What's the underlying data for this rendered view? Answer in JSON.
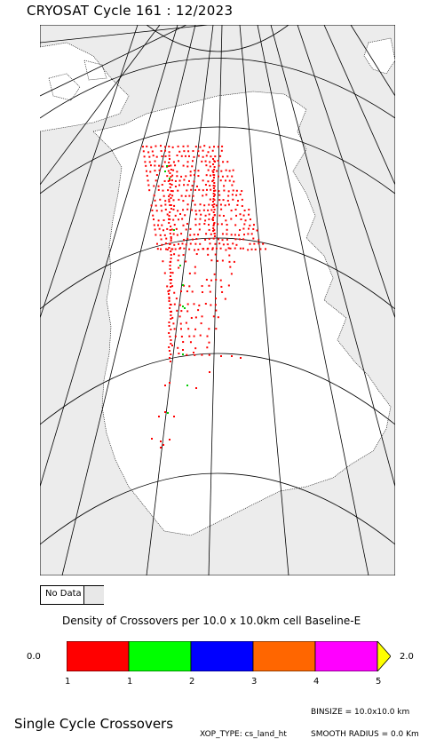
{
  "header": {
    "title": "CRYOSAT Cycle 161 : 12/2023"
  },
  "legend": {
    "no_data_label": "No Data",
    "density_title": "Density of Crossovers per  10.0 x  10.0km cell Baseline-E",
    "scale_min": "0.0",
    "scale_max": "2.0",
    "colors": [
      "#ff0000",
      "#00ff00",
      "#0000ff",
      "#ff6600",
      "#ff00ff"
    ],
    "arrow_color": "#ffff00",
    "tick_labels": [
      "1",
      "1",
      "2",
      "3",
      "4",
      "5"
    ]
  },
  "footer": {
    "title": "Single Cycle Crossovers",
    "binsize": "BINSIZE = 10.0x10.0 km",
    "xop_type": "XOP_TYPE: cs_land_ht",
    "smooth_radius": "SMOOTH RADIUS =     0.0 Km"
  },
  "map": {
    "background_color": "#ececec",
    "land_color": "#ffffff",
    "point_colors": {
      "red": "#ff0000",
      "green": "#00cc00"
    }
  }
}
